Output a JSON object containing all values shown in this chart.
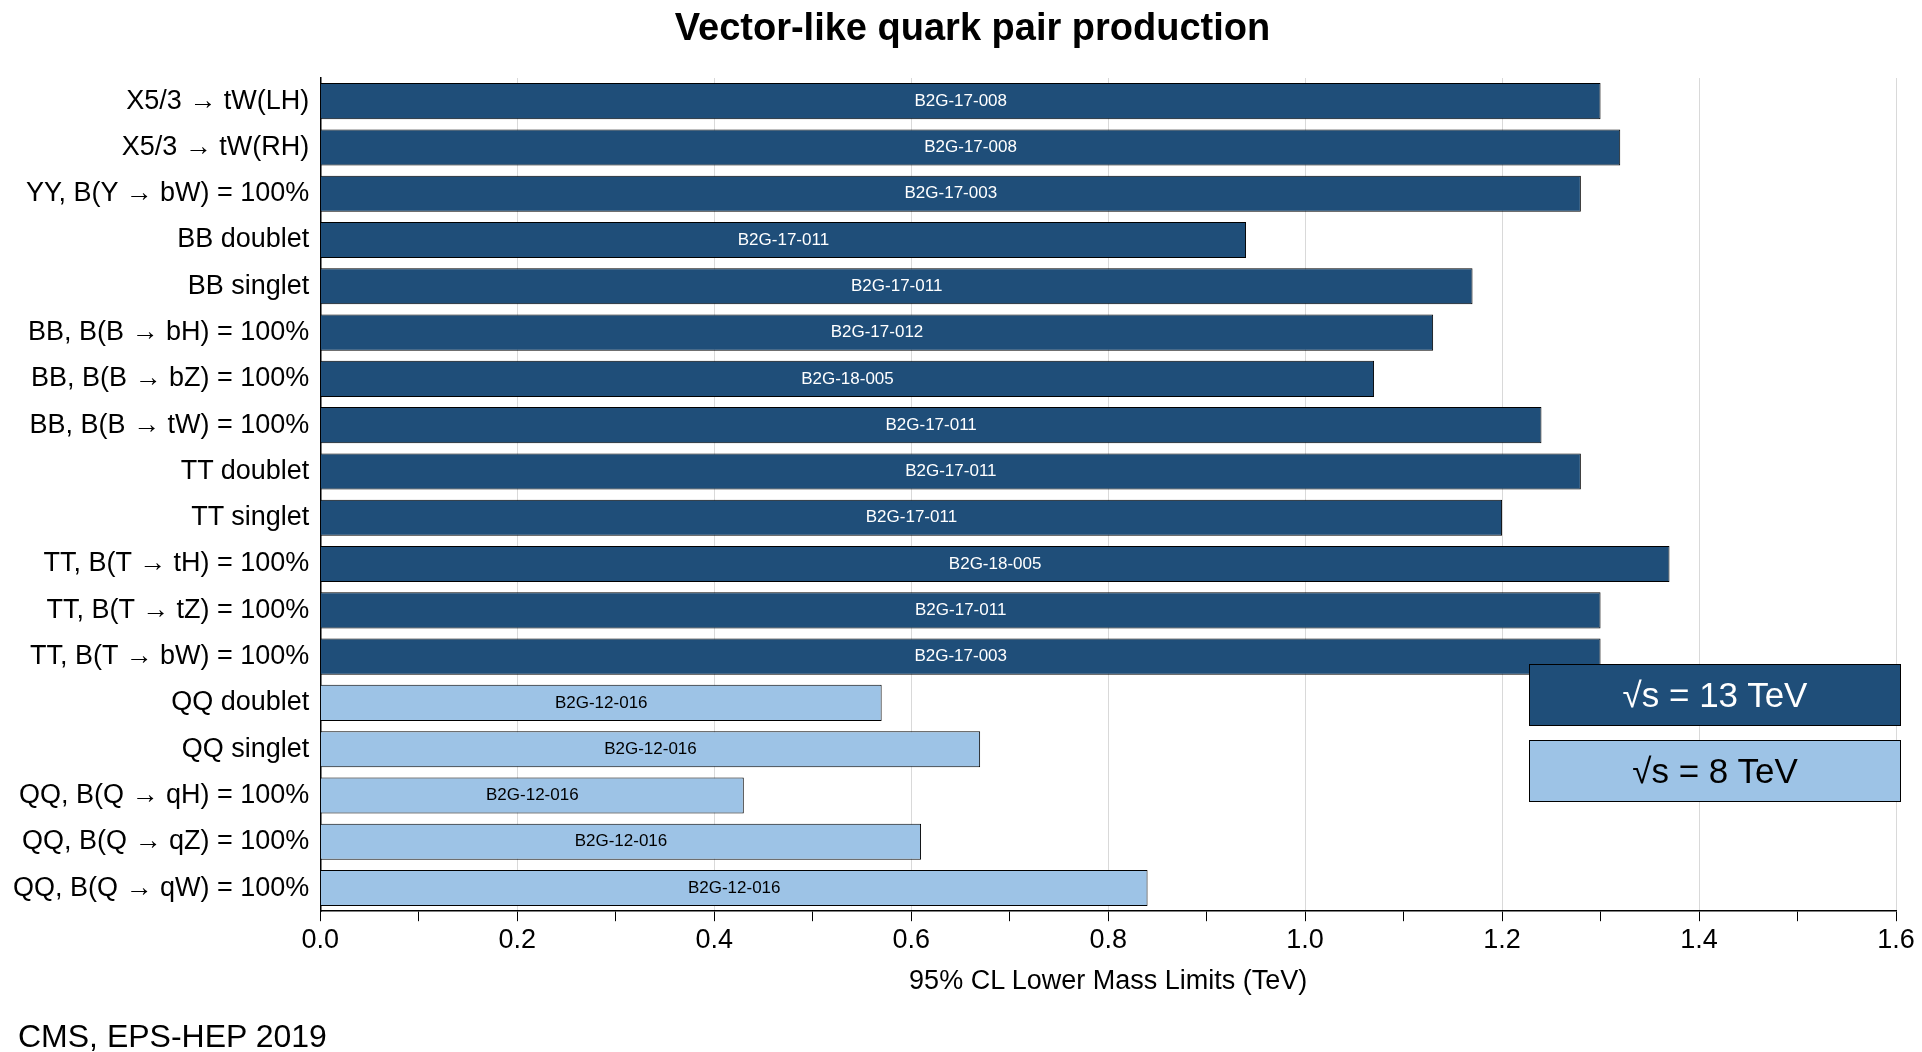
{
  "chart_data": {
    "type": "bar",
    "orientation": "horizontal",
    "title": "Vector-like quark pair production",
    "xlabel": "95% CL Lower Mass Limits (TeV)",
    "categories": [
      "X5/3 → tW(LH)",
      "X5/3 → tW(RH)",
      "YY, B(Y → bW) = 100%",
      "BB doublet",
      "BB singlet",
      "BB, B(B → bH) = 100%",
      "BB, B(B → bZ) = 100%",
      "BB, B(B → tW) = 100%",
      "TT doublet",
      "TT singlet",
      "TT, B(T → tH) = 100%",
      "TT, B(T → tZ) = 100%",
      "TT, B(T → bW) = 100%",
      "QQ doublet",
      "QQ singlet",
      "QQ, B(Q → qH) = 100%",
      "QQ, B(Q → qZ) = 100%",
      "QQ, B(Q → qW) = 100%"
    ],
    "series": [
      {
        "name": "√s = 13 TeV",
        "color": "#1f4e79",
        "values": [
          1.3,
          1.32,
          1.28,
          0.94,
          1.17,
          1.13,
          1.07,
          1.24,
          1.28,
          1.2,
          1.37,
          1.3,
          1.3,
          null,
          null,
          null,
          null,
          null
        ],
        "value_labels": [
          "B2G-17-008",
          "B2G-17-008",
          "B2G-17-003",
          "B2G-17-011",
          "B2G-17-011",
          "B2G-17-012",
          "B2G-18-005",
          "B2G-17-011",
          "B2G-17-011",
          "B2G-17-011",
          "B2G-18-005",
          "B2G-17-011",
          "B2G-17-003",
          null,
          null,
          null,
          null,
          null
        ]
      },
      {
        "name": "√s = 8 TeV",
        "color": "#9dc3e6",
        "values": [
          null,
          null,
          null,
          null,
          null,
          null,
          null,
          null,
          null,
          null,
          null,
          null,
          null,
          0.57,
          0.67,
          0.43,
          0.61,
          0.84
        ],
        "value_labels": [
          null,
          null,
          null,
          null,
          null,
          null,
          null,
          null,
          null,
          null,
          null,
          null,
          null,
          "B2G-12-016",
          "B2G-12-016",
          "B2G-12-016",
          "B2G-12-016",
          "B2G-12-016"
        ]
      }
    ],
    "xlim": [
      0,
      1.6
    ],
    "xticks": [
      {
        "value": 0,
        "label": "0.0"
      },
      {
        "value": 0.1,
        "label": null
      },
      {
        "value": 0.2,
        "label": "0.2"
      },
      {
        "value": 0.3,
        "label": null
      },
      {
        "value": 0.4,
        "label": "0.4"
      },
      {
        "value": 0.5,
        "label": null
      },
      {
        "value": 0.6,
        "label": "0.6"
      },
      {
        "value": 0.7,
        "label": null
      },
      {
        "value": 0.8,
        "label": "0.8"
      },
      {
        "value": 0.9,
        "label": null
      },
      {
        "value": 1.0,
        "label": "1.0"
      },
      {
        "value": 1.1,
        "label": null
      },
      {
        "value": 1.2,
        "label": "1.2"
      },
      {
        "value": 1.3,
        "label": null
      },
      {
        "value": 1.4,
        "label": "1.4"
      },
      {
        "value": 1.5,
        "label": null
      },
      {
        "value": 1.6,
        "label": "1.6"
      }
    ],
    "grid": "x",
    "legend": "bottom right",
    "annotations": [
      "CMS, EPS-HEP 2019"
    ]
  }
}
